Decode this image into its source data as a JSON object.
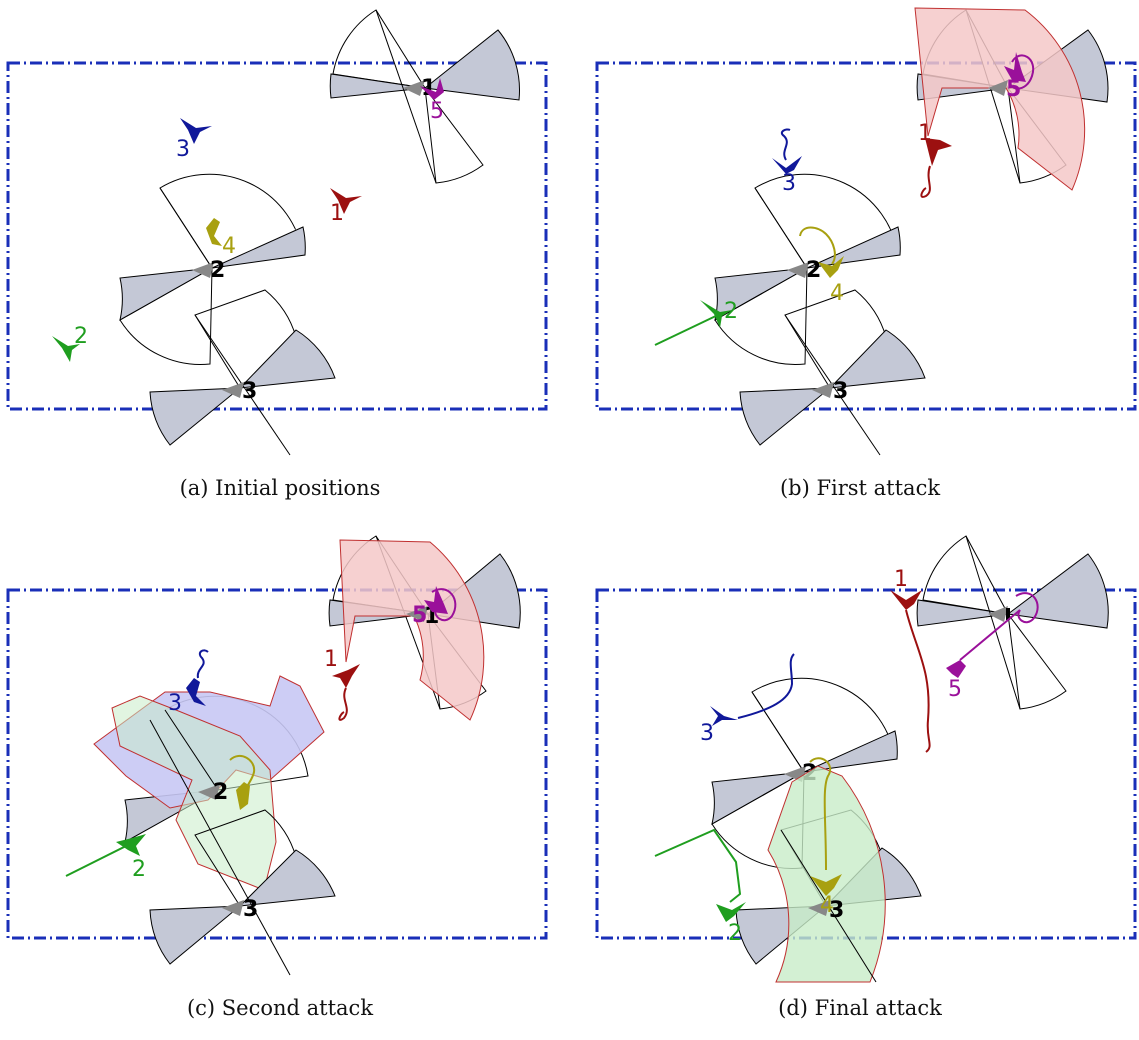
{
  "panels": [
    {
      "id": "a",
      "caption": "(a) Initial positions",
      "defenders": [
        "1",
        "2",
        "3"
      ],
      "attackers": [
        "1",
        "2",
        "3",
        "4",
        "5"
      ],
      "colors": {
        "attacker_1": "#9c1010",
        "attacker_2": "#1f9e1f",
        "attacker_3": "#10189a",
        "attacker_4": "#a8a010",
        "attacker_5": "#9a109a"
      }
    },
    {
      "id": "b",
      "caption": "(b) First attack",
      "defenders": [
        "5",
        "2",
        "3"
      ],
      "attackers": [
        "1",
        "3",
        "2",
        "4"
      ],
      "colors": {
        "attacker_1": "#9c1010",
        "attacker_2": "#1f9e1f",
        "attacker_3": "#10189a",
        "attacker_4": "#a8a010",
        "attacker_5": "#9a109a"
      }
    },
    {
      "id": "c",
      "caption": "(c) Second attack",
      "defenders": [
        "5",
        "1",
        "2",
        "3"
      ],
      "attackers": [
        "1",
        "3",
        "2"
      ],
      "colors": {
        "attacker_1": "#9c1010",
        "attacker_2": "#1f9e1f",
        "attacker_3": "#10189a",
        "attacker_4": "#a8a010",
        "attacker_5": "#9a109a"
      }
    },
    {
      "id": "d",
      "caption": "(d) Final attack",
      "defenders": [
        "2",
        "3"
      ],
      "attackers": [
        "1",
        "3",
        "5",
        "2",
        "4"
      ],
      "colors": {
        "attacker_1": "#9c1010",
        "attacker_2": "#1f9e1f",
        "attacker_3": "#10189a",
        "attacker_4": "#a8a010",
        "attacker_5": "#9a109a"
      }
    }
  ],
  "style": {
    "boundary": "#1a2fb8",
    "sector_fill": "#c4c8d6",
    "attack_red": "#f4c8c8",
    "attack_green": "#c8ecc8",
    "attack_blue": "#c8c8f4"
  }
}
